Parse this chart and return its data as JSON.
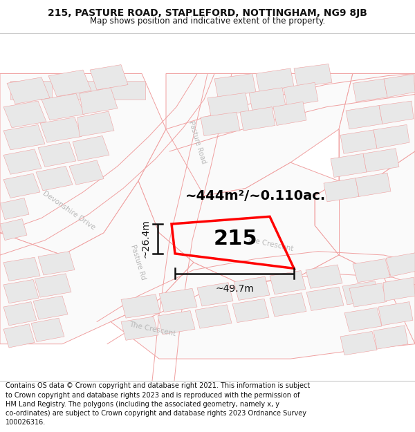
{
  "title_line1": "215, PASTURE ROAD, STAPLEFORD, NOTTINGHAM, NG9 8JB",
  "title_line2": "Map shows position and indicative extent of the property.",
  "footer_text": "Contains OS data © Crown copyright and database right 2021. This information is subject to Crown copyright and database rights 2023 and is reproduced with the permission of HM Land Registry. The polygons (including the associated geometry, namely x, y co-ordinates) are subject to Crown copyright and database rights 2023 Ordnance Survey 100026316.",
  "area_label": "~444m²/~0.110ac.",
  "property_number": "215",
  "width_label": "~49.7m",
  "height_label": "~26.4m",
  "bg_color": "#f8f8f8",
  "road_outline_color": "#f0a0a0",
  "block_fill": "#e8e8e8",
  "block_edge": "#cccccc",
  "road_label_color": "#b8b8b8",
  "property_color": "#ff0000",
  "measure_color": "#111111",
  "title_color": "#111111",
  "white": "#ffffff",
  "title_fontsize": 10,
  "subtitle_fontsize": 8.5,
  "area_fontsize": 14,
  "prop_num_fontsize": 22,
  "footer_fontsize": 7.0
}
